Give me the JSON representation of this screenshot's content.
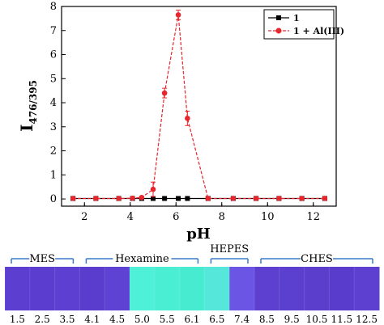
{
  "chart_data": {
    "type": "line",
    "xlabel": "pH",
    "ylabel_main": "I",
    "ylabel_sub": "476/395",
    "xlim": [
      1.0,
      13.0
    ],
    "ylim": [
      -0.3,
      8.0
    ],
    "x_ticks": [
      2,
      4,
      6,
      8,
      10,
      12
    ],
    "y_ticks": [
      0,
      1,
      2,
      3,
      4,
      5,
      6,
      7,
      8
    ],
    "legend_position": "top-right",
    "series": [
      {
        "name": "1",
        "color": "#000000",
        "marker": "square",
        "line_style": "solid",
        "x": [
          1.5,
          2.5,
          3.5,
          4.1,
          4.5,
          5.0,
          5.5,
          6.1,
          6.5,
          7.4,
          8.5,
          9.5,
          10.5,
          11.5,
          12.5
        ],
        "y": [
          0.02,
          0.02,
          0.02,
          0.02,
          0.02,
          0.02,
          0.02,
          0.02,
          0.02,
          0.02,
          0.02,
          0.02,
          0.02,
          0.02,
          0.02
        ]
      },
      {
        "name": "1 + Al(III)",
        "color": "#e8262d",
        "marker": "circle",
        "line_style": "dashed",
        "x": [
          1.5,
          2.5,
          3.5,
          4.1,
          4.5,
          5.0,
          5.5,
          6.1,
          6.5,
          7.4,
          8.5,
          9.5,
          10.5,
          11.5,
          12.5
        ],
        "y": [
          0.02,
          0.02,
          0.02,
          0.03,
          0.06,
          0.4,
          4.4,
          7.65,
          3.35,
          0.02,
          0.02,
          0.02,
          0.02,
          0.02,
          0.02
        ],
        "error": [
          0,
          0,
          0,
          0,
          0,
          0.3,
          0.2,
          0.2,
          0.3,
          0,
          0,
          0,
          0,
          0,
          0
        ]
      }
    ]
  },
  "photo_strip": {
    "buffers": [
      {
        "name": "MES",
        "from_index": 0,
        "to_index": 2
      },
      {
        "name": "Hexamine",
        "from_index": 3,
        "to_index": 7
      },
      {
        "name": "HEPES",
        "from_index": 8,
        "to_index": 9
      },
      {
        "name": "CHES",
        "from_index": 10,
        "to_index": 14
      }
    ],
    "sample_labels": [
      "1.5",
      "2.5",
      "3.5",
      "4.1",
      "4.5",
      "5.0",
      "5.5",
      "6.1",
      "6.5",
      "7.4",
      "8.5",
      "9.5",
      "10.5",
      "11.5",
      "12.5"
    ],
    "sample_colors": [
      "#5c3fd0",
      "#5b3ecf",
      "#5d40d2",
      "#5a3dcd",
      "#5e42d3",
      "#4ff0d8",
      "#4aeed2",
      "#47ecd0",
      "#55e8da",
      "#6a55e4",
      "#5e40d0",
      "#5b3fcf",
      "#5c3ecd",
      "#5a3ccc",
      "#5d40cf"
    ]
  }
}
